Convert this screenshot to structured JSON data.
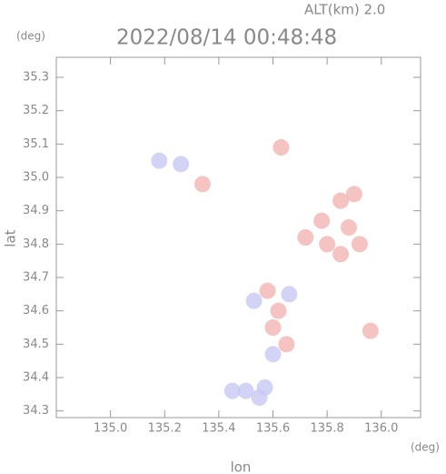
{
  "chart_data": {
    "type": "scatter",
    "title": "2022/08/14 00:48:48",
    "annotation": "ALT(km)  2.0",
    "y_unit": "(deg)",
    "x_unit": "(deg)",
    "xlabel": "lon",
    "ylabel": "lat",
    "xlim": [
      134.8,
      136.145
    ],
    "ylim": [
      34.28,
      35.36
    ],
    "xticks": [
      {
        "value": 135,
        "label": "135.0"
      },
      {
        "value": 135.2,
        "label": "135.2"
      },
      {
        "value": 135.4,
        "label": "135.4"
      },
      {
        "value": 135.6,
        "label": "135.6"
      },
      {
        "value": 135.8,
        "label": "135.8"
      },
      {
        "value": 136,
        "label": "136.0"
      }
    ],
    "yticks": [
      34.3,
      34.4,
      34.5,
      34.6,
      34.7,
      34.8,
      34.9,
      {
        "value": 35,
        "label": "35.0"
      },
      35.1,
      35.2,
      35.3
    ],
    "series": [
      {
        "color": "#f4b4b4",
        "x": [
          135.85,
          135.9,
          135.78,
          135.88,
          135.72,
          135.8,
          135.92,
          135.85,
          135.58,
          135.62,
          135.6,
          135.65,
          135.63,
          135.96,
          135.34
        ],
        "values": [
          34.93,
          34.95,
          34.87,
          34.85,
          34.82,
          34.8,
          34.8,
          34.77,
          34.66,
          34.6,
          34.55,
          34.5,
          35.09,
          34.54,
          34.98
        ]
      },
      {
        "color": "#c8c8f4",
        "x": [
          135.18,
          135.26,
          135.5,
          135.57,
          135.55,
          135.45,
          135.53,
          135.66,
          135.6
        ],
        "values": [
          35.05,
          35.04,
          34.36,
          34.37,
          34.34,
          34.36,
          34.63,
          34.65,
          34.47
        ]
      }
    ]
  }
}
